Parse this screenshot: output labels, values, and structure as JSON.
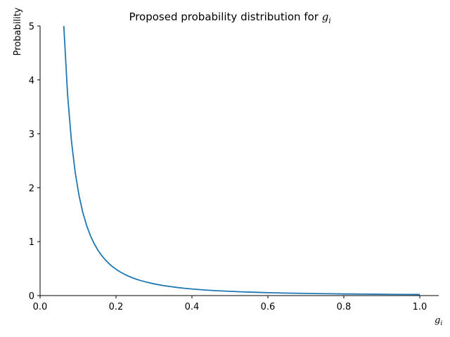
{
  "chart_data": {
    "type": "line",
    "title": "Proposed probability distribution for",
    "title_symbol": "g",
    "title_symbol_subscript": "i",
    "xlabel_symbol": "g",
    "xlabel_subscript": "i",
    "ylabel": "Probability",
    "xlim": [
      0.0,
      1.05
    ],
    "ylim": [
      0,
      5
    ],
    "x_ticks": [
      0.0,
      0.2,
      0.4,
      0.6,
      0.8,
      1.0
    ],
    "x_tick_labels": [
      "0.0",
      "0.2",
      "0.4",
      "0.6",
      "0.8",
      "1.0"
    ],
    "y_ticks": [
      0,
      1,
      2,
      3,
      4,
      5
    ],
    "y_tick_labels": [
      "0",
      "1",
      "2",
      "3",
      "4",
      "5"
    ],
    "grid": false,
    "series": [
      {
        "color": "#1f77b4",
        "x": [
          0.0625,
          0.0725,
          0.0825,
          0.0925,
          0.1025,
          0.1125,
          0.1225,
          0.1325,
          0.1425,
          0.1525,
          0.1625,
          0.1725,
          0.1825,
          0.1925,
          0.2025,
          0.2125,
          0.2225,
          0.2325,
          0.2425,
          0.2525,
          0.2625,
          0.2825,
          0.3025,
          0.3225,
          0.3425,
          0.3625,
          0.3825,
          0.4025,
          0.4325,
          0.4625,
          0.4925,
          0.5225,
          0.5525,
          0.5825,
          0.6125,
          0.6425,
          0.6825,
          0.7225,
          0.7625,
          0.8025,
          0.8425,
          0.8825,
          0.9225,
          0.9625,
          1.0
        ],
        "values": [
          5.0,
          3.721,
          2.873,
          2.285,
          1.859,
          1.543,
          1.302,
          1.113,
          0.962,
          0.84,
          0.74,
          0.657,
          0.587,
          0.527,
          0.476,
          0.433,
          0.395,
          0.361,
          0.332,
          0.306,
          0.284,
          0.245,
          0.214,
          0.188,
          0.167,
          0.149,
          0.133,
          0.121,
          0.104,
          0.091,
          0.081,
          0.072,
          0.064,
          0.058,
          0.052,
          0.047,
          0.042,
          0.037,
          0.034,
          0.03,
          0.028,
          0.025,
          0.023,
          0.021,
          0.02
        ]
      }
    ]
  }
}
